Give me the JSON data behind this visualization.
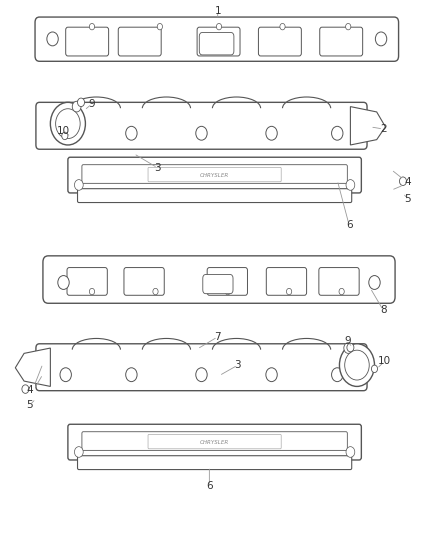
{
  "bg_color": "#ffffff",
  "line_color": "#555555",
  "label_color": "#333333",
  "label_fontsize": 7.5,
  "shield_text_color": "#888888",
  "shield_text": "CHRYSLER",
  "leader_color": "#999999"
}
